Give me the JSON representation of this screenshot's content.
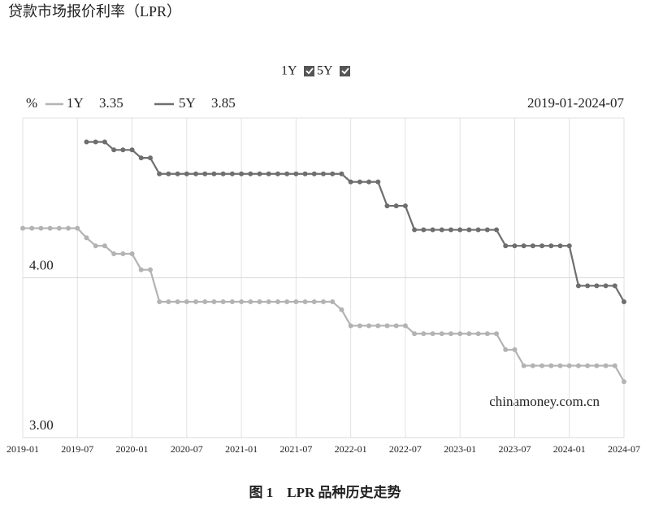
{
  "title": "贷款市场报价利率（LPR）",
  "caption": "图 1　LPR 品种历史走势",
  "chart_data": {
    "type": "line",
    "unit_label": "%",
    "range_label": "2019-01-2024-07",
    "watermark": "chinamoney.com.cn",
    "categories": [
      "2019-01",
      null,
      null,
      null,
      null,
      null,
      "2019-07",
      null,
      null,
      null,
      null,
      null,
      "2020-01",
      null,
      null,
      null,
      null,
      null,
      "2020-07",
      null,
      null,
      null,
      null,
      null,
      "2021-01",
      null,
      null,
      null,
      null,
      null,
      "2021-07",
      null,
      null,
      null,
      null,
      null,
      "2022-01",
      null,
      null,
      null,
      null,
      null,
      "2022-07",
      null,
      null,
      null,
      null,
      null,
      "2023-01",
      null,
      null,
      null,
      null,
      null,
      "2023-07",
      null,
      null,
      null,
      null,
      null,
      "2024-01",
      null,
      null,
      null,
      null,
      null,
      "2024-07"
    ],
    "series": [
      {
        "name": "1Y",
        "color": "#b3b3b3",
        "latest": 3.35,
        "values": [
          4.31,
          4.31,
          4.31,
          4.31,
          4.31,
          4.31,
          4.31,
          4.25,
          4.2,
          4.2,
          4.15,
          4.15,
          4.15,
          4.05,
          4.05,
          3.85,
          3.85,
          3.85,
          3.85,
          3.85,
          3.85,
          3.85,
          3.85,
          3.85,
          3.85,
          3.85,
          3.85,
          3.85,
          3.85,
          3.85,
          3.85,
          3.85,
          3.85,
          3.85,
          3.85,
          3.8,
          3.7,
          3.7,
          3.7,
          3.7,
          3.7,
          3.7,
          3.7,
          3.65,
          3.65,
          3.65,
          3.65,
          3.65,
          3.65,
          3.65,
          3.65,
          3.65,
          3.65,
          3.55,
          3.55,
          3.45,
          3.45,
          3.45,
          3.45,
          3.45,
          3.45,
          3.45,
          3.45,
          3.45,
          3.45,
          3.45,
          3.35
        ]
      },
      {
        "name": "5Y",
        "color": "#6e6e6e",
        "latest": 3.85,
        "values": [
          null,
          null,
          null,
          null,
          null,
          null,
          null,
          4.85,
          4.85,
          4.85,
          4.8,
          4.8,
          4.8,
          4.75,
          4.75,
          4.65,
          4.65,
          4.65,
          4.65,
          4.65,
          4.65,
          4.65,
          4.65,
          4.65,
          4.65,
          4.65,
          4.65,
          4.65,
          4.65,
          4.65,
          4.65,
          4.65,
          4.65,
          4.65,
          4.65,
          4.65,
          4.6,
          4.6,
          4.6,
          4.6,
          4.45,
          4.45,
          4.45,
          4.3,
          4.3,
          4.3,
          4.3,
          4.3,
          4.3,
          4.3,
          4.3,
          4.3,
          4.3,
          4.2,
          4.2,
          4.2,
          4.2,
          4.2,
          4.2,
          4.2,
          4.2,
          3.95,
          3.95,
          3.95,
          3.95,
          3.95,
          3.85
        ]
      }
    ],
    "ylim": [
      3,
      5
    ],
    "yticks": [
      {
        "value": 3,
        "label": "3.00"
      },
      {
        "value": 4,
        "label": "4.00"
      }
    ],
    "grid": true
  }
}
